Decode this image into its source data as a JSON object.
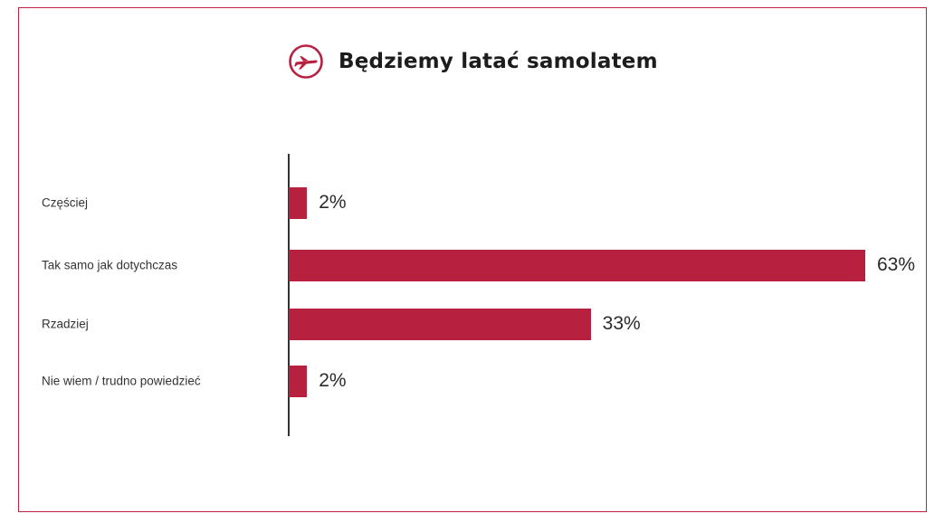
{
  "header": {
    "title": "Będziemy latać samolatem",
    "icon": "airplane-icon"
  },
  "colors": {
    "accent": "#b8203f",
    "frame": "#c0203f",
    "text": "#1c1c1c"
  },
  "chart_data": {
    "type": "bar",
    "orientation": "horizontal",
    "title": "Będziemy latać samolatem",
    "categories": [
      "Częściej",
      "Tak samo jak dotychczas",
      "Rzadziej",
      "Nie wiem / trudno powiedzieć"
    ],
    "values": [
      2,
      63,
      33,
      2
    ],
    "value_labels": [
      "2%",
      "63%",
      "33%",
      "2%"
    ],
    "unit": "%",
    "xlim": [
      0,
      63
    ],
    "grid": false,
    "legend": "none"
  }
}
